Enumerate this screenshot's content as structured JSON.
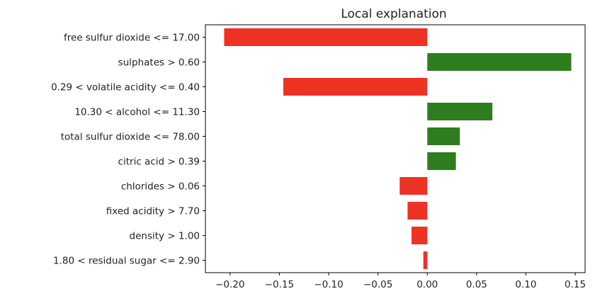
{
  "chart_data": {
    "type": "bar",
    "orientation": "horizontal",
    "title": "Local explanation",
    "xlabel": "",
    "ylabel": "",
    "xlim": [
      -0.225,
      0.16
    ],
    "x_ticks": [
      -0.2,
      -0.15,
      -0.1,
      -0.05,
      0.0,
      0.05,
      0.1,
      0.15
    ],
    "x_tick_labels": [
      "−0.20",
      "−0.15",
      "−0.10",
      "−0.05",
      "0.00",
      "0.05",
      "0.10",
      "0.15"
    ],
    "grid": false,
    "legend": "none",
    "categories": [
      "free sulfur dioxide <= 17.00",
      "sulphates > 0.60",
      "0.29 < volatile acidity <= 0.40",
      "10.30 < alcohol <= 11.30",
      "total sulfur dioxide <= 78.00",
      "citric acid > 0.39",
      "chlorides > 0.06",
      "fixed acidity > 7.70",
      "density > 1.00",
      "1.80 < residual sugar <= 2.90"
    ],
    "values": [
      -0.206,
      0.146,
      -0.146,
      0.066,
      0.033,
      0.029,
      -0.028,
      -0.02,
      -0.016,
      -0.004
    ],
    "colors": {
      "positive": "#2e7d1e",
      "negative": "#ee3224"
    }
  }
}
